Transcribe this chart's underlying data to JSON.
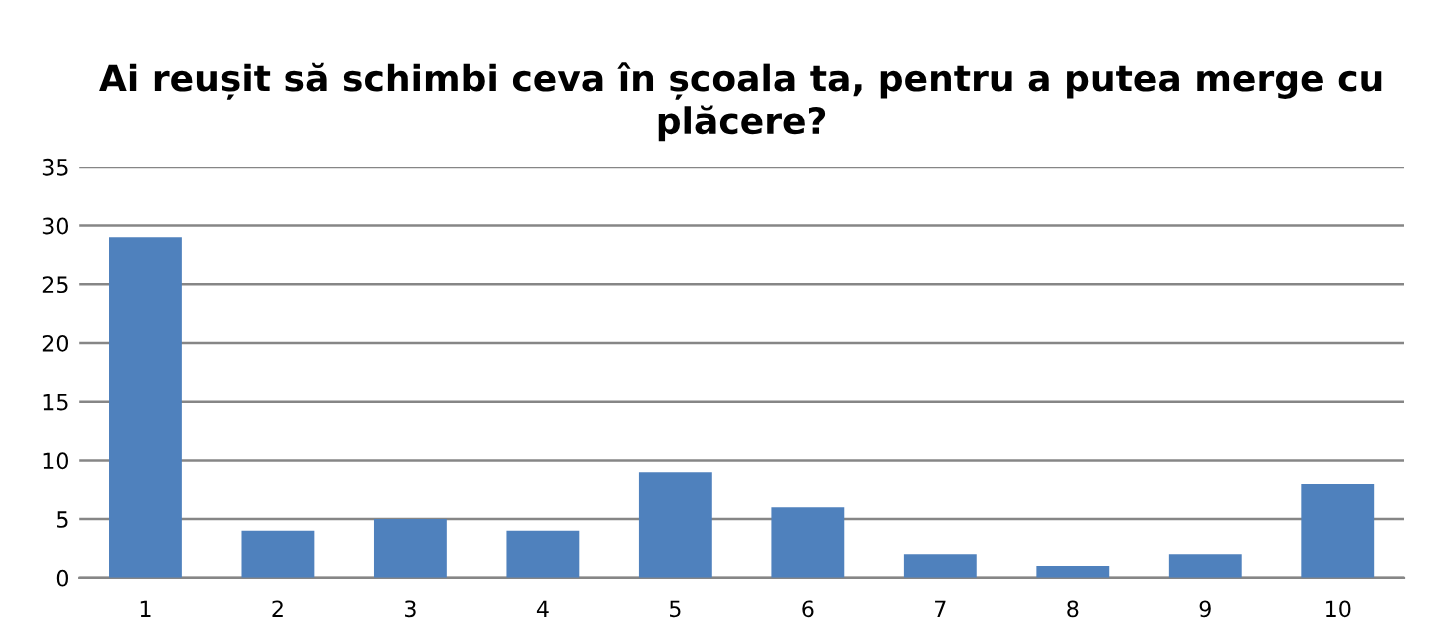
{
  "chart_data": {
    "type": "bar",
    "title": "Ai reușit să schimbi ceva în școala ta, pentru a putea merge cu plăcere?",
    "categories": [
      "1",
      "2",
      "3",
      "4",
      "5",
      "6",
      "7",
      "8",
      "9",
      "10"
    ],
    "values": [
      29,
      4,
      5,
      4,
      9,
      6,
      2,
      1,
      2,
      8
    ],
    "color": "#4f81bd",
    "ylim": [
      0,
      35
    ],
    "yticks": [
      0,
      5,
      10,
      15,
      20,
      25,
      30,
      35
    ],
    "grid": "y"
  }
}
